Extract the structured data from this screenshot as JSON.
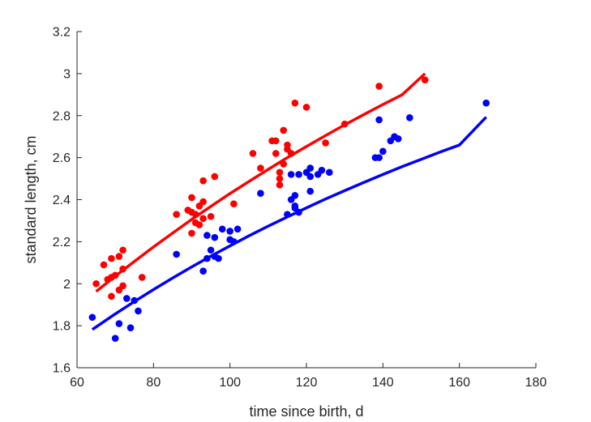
{
  "chart_data": {
    "type": "scatter",
    "title": "",
    "xlabel": "time since birth, d",
    "ylabel": "standard length, cm",
    "xlim": [
      60,
      180
    ],
    "ylim": [
      1.6,
      3.2
    ],
    "xticks": [
      60,
      80,
      100,
      120,
      140,
      160,
      180
    ],
    "yticks": [
      1.6,
      1.8,
      2,
      2.2,
      2.4,
      2.6,
      2.8,
      3,
      3.2
    ],
    "ytick_labels": [
      "1.6",
      "1.8",
      "2",
      "2.2",
      "2.4",
      "2.6",
      "2.8",
      "3",
      "3.2"
    ],
    "grid": false,
    "legend": "none",
    "series": [
      {
        "color": "#ff0000",
        "points": [
          [
            65,
            2.0
          ],
          [
            67,
            2.09
          ],
          [
            68,
            2.02
          ],
          [
            69,
            2.03
          ],
          [
            69,
            2.12
          ],
          [
            69,
            1.94
          ],
          [
            70,
            2.04
          ],
          [
            71,
            2.13
          ],
          [
            71,
            1.97
          ],
          [
            72,
            2.07
          ],
          [
            72,
            2.16
          ],
          [
            72,
            1.99
          ],
          [
            77,
            2.03
          ],
          [
            86,
            2.33
          ],
          [
            89,
            2.35
          ],
          [
            90,
            2.41
          ],
          [
            90,
            2.34
          ],
          [
            90,
            2.24
          ],
          [
            91,
            2.29
          ],
          [
            91,
            2.33
          ],
          [
            92,
            2.37
          ],
          [
            92,
            2.28
          ],
          [
            93,
            2.49
          ],
          [
            93,
            2.39
          ],
          [
            93,
            2.31
          ],
          [
            95,
            2.32
          ],
          [
            96,
            2.51
          ],
          [
            101,
            2.38
          ],
          [
            106,
            2.62
          ],
          [
            108,
            2.55
          ],
          [
            111,
            2.68
          ],
          [
            112,
            2.68
          ],
          [
            112,
            2.62
          ],
          [
            113,
            2.5
          ],
          [
            113,
            2.53
          ],
          [
            113,
            2.47
          ],
          [
            114,
            2.73
          ],
          [
            114,
            2.57
          ],
          [
            115,
            2.66
          ],
          [
            115,
            2.64
          ],
          [
            116,
            2.62
          ],
          [
            117,
            2.86
          ],
          [
            120,
            2.84
          ],
          [
            125,
            2.67
          ],
          [
            130,
            2.76
          ],
          [
            139,
            2.94
          ],
          [
            151,
            2.97
          ]
        ],
        "fit": [
          [
            65,
            1.963
          ],
          [
            70,
            2.036
          ],
          [
            75,
            2.106
          ],
          [
            80,
            2.175
          ],
          [
            85,
            2.241
          ],
          [
            90,
            2.306
          ],
          [
            95,
            2.368
          ],
          [
            100,
            2.429
          ],
          [
            105,
            2.487
          ],
          [
            110,
            2.544
          ],
          [
            115,
            2.6
          ],
          [
            120,
            2.653
          ],
          [
            125,
            2.705
          ],
          [
            130,
            2.756
          ],
          [
            135,
            2.805
          ],
          [
            140,
            2.853
          ],
          [
            145,
            2.899
          ],
          [
            151,
            3.0
          ]
        ]
      },
      {
        "color": "#0000ff",
        "points": [
          [
            64,
            1.84
          ],
          [
            70,
            1.74
          ],
          [
            71,
            1.81
          ],
          [
            73,
            1.93
          ],
          [
            74,
            1.79
          ],
          [
            75,
            1.92
          ],
          [
            76,
            1.87
          ],
          [
            86,
            2.14
          ],
          [
            93,
            2.06
          ],
          [
            94,
            2.23
          ],
          [
            94,
            2.12
          ],
          [
            95,
            2.16
          ],
          [
            96,
            2.22
          ],
          [
            96,
            2.13
          ],
          [
            97,
            2.12
          ],
          [
            98,
            2.26
          ],
          [
            100,
            2.25
          ],
          [
            100,
            2.21
          ],
          [
            101,
            2.2
          ],
          [
            102,
            2.26
          ],
          [
            108,
            2.43
          ],
          [
            115,
            2.33
          ],
          [
            116,
            2.52
          ],
          [
            116,
            2.4
          ],
          [
            117,
            2.42
          ],
          [
            117,
            2.37
          ],
          [
            117,
            2.36
          ],
          [
            118,
            2.52
          ],
          [
            118,
            2.34
          ],
          [
            120,
            2.53
          ],
          [
            121,
            2.55
          ],
          [
            121,
            2.51
          ],
          [
            121,
            2.44
          ],
          [
            123,
            2.52
          ],
          [
            124,
            2.54
          ],
          [
            126,
            2.53
          ],
          [
            138,
            2.6
          ],
          [
            139,
            2.78
          ],
          [
            139,
            2.6
          ],
          [
            140,
            2.63
          ],
          [
            142,
            2.68
          ],
          [
            143,
            2.7
          ],
          [
            144,
            2.69
          ],
          [
            147,
            2.79
          ],
          [
            167,
            2.86
          ]
        ],
        "fit": [
          [
            64,
            1.782
          ],
          [
            70,
            1.856
          ],
          [
            75,
            1.915
          ],
          [
            80,
            1.972
          ],
          [
            85,
            2.027
          ],
          [
            90,
            2.08
          ],
          [
            95,
            2.131
          ],
          [
            100,
            2.18
          ],
          [
            105,
            2.228
          ],
          [
            110,
            2.274
          ],
          [
            115,
            2.318
          ],
          [
            120,
            2.361
          ],
          [
            125,
            2.403
          ],
          [
            130,
            2.443
          ],
          [
            135,
            2.482
          ],
          [
            140,
            2.52
          ],
          [
            145,
            2.557
          ],
          [
            150,
            2.592
          ],
          [
            155,
            2.627
          ],
          [
            160,
            2.66
          ],
          [
            167,
            2.793
          ]
        ]
      }
    ]
  }
}
